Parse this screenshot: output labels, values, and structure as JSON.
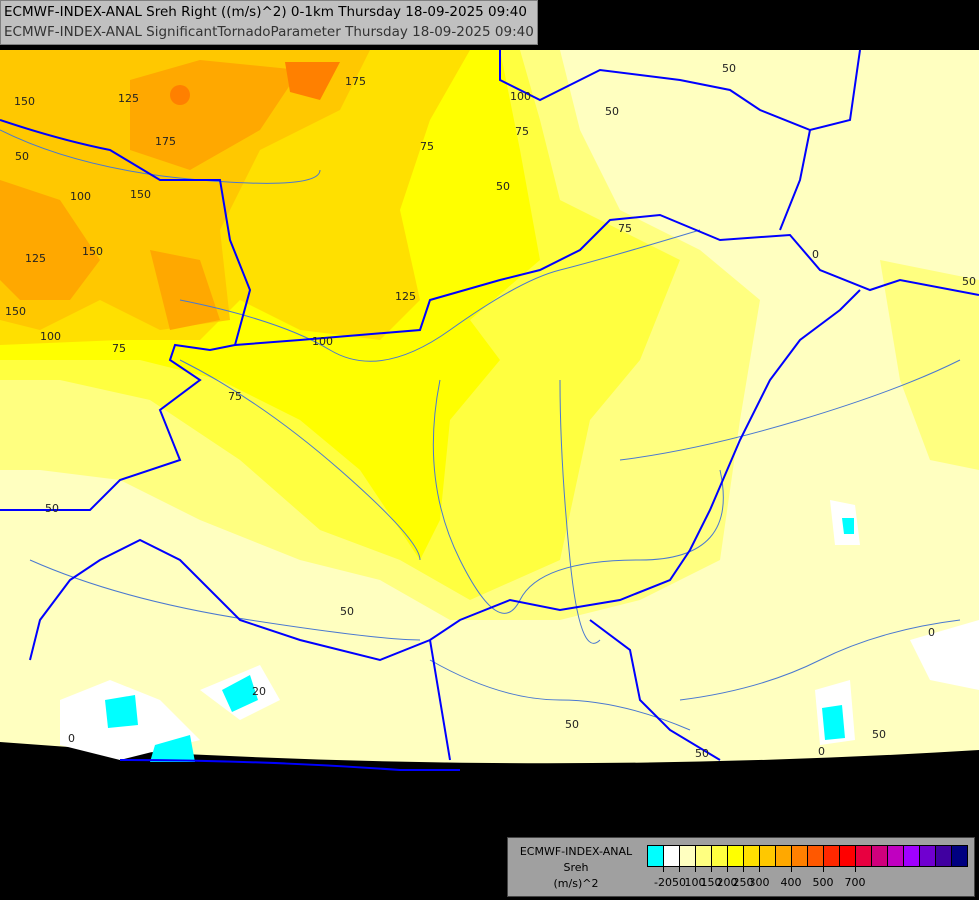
{
  "titles": {
    "line1": "ECMWF-INDEX-ANAL Sreh Right ((m/s)^2) 0-1km Thursday 18-09-2025 09:40",
    "line2": "ECMWF-INDEX-ANAL SignificantTornadoParameter Thursday 18-09-2025 09:40"
  },
  "legend": {
    "model": "ECMWF-INDEX-ANAL",
    "parameter": "Sreh",
    "unit": "(m/s)^2",
    "colors": [
      "#00ffff",
      "#ffffff",
      "#ffffc0",
      "#ffff80",
      "#ffff40",
      "#ffff00",
      "#ffe000",
      "#ffc800",
      "#ffa800",
      "#ff8000",
      "#ff5800",
      "#ff2800",
      "#ff0000",
      "#e80040",
      "#d0007c",
      "#c000c0",
      "#a000ff",
      "#7000d0",
      "#4000a0",
      "#000080"
    ],
    "tick_labels": [
      "-20",
      "50",
      "100",
      "150",
      "200",
      "250",
      "300",
      "400",
      "500",
      "700"
    ]
  },
  "contour_labels": [
    "150",
    "125",
    "175",
    "175",
    "100",
    "75",
    "100",
    "150",
    "125",
    "150",
    "150",
    "100",
    "75",
    "125",
    "75",
    "50",
    "50",
    "75",
    "50",
    "50",
    "75",
    "50",
    "0",
    "50",
    "20",
    "0",
    "0",
    "50",
    "50",
    "0",
    "50",
    "50",
    "100"
  ],
  "colors": {
    "background": "#000000",
    "border": "#0000ff",
    "river": "#4a78d0"
  }
}
